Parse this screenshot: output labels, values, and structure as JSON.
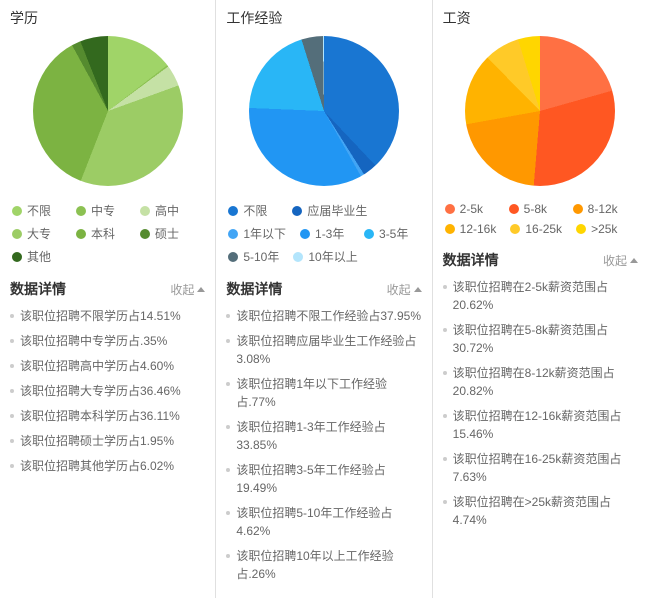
{
  "panels": [
    {
      "title": "学历",
      "type": "pie",
      "segments": [
        {
          "label": "不限",
          "color": "#a0d468",
          "percent": 14.51,
          "text": "该职位招聘不限学历占14.51%"
        },
        {
          "label": "中专",
          "color": "#8cc152",
          "percent": 0.35,
          "text": "该职位招聘中专学历占.35%"
        },
        {
          "label": "高中",
          "color": "#c5e1a5",
          "percent": 4.6,
          "text": "该职位招聘高中学历占4.60%"
        },
        {
          "label": "大专",
          "color": "#9ccc65",
          "percent": 36.46,
          "text": "该职位招聘大专学历占36.46%"
        },
        {
          "label": "本科",
          "color": "#7cb342",
          "percent": 36.11,
          "text": "该职位招聘本科学历占36.11%"
        },
        {
          "label": "硕士",
          "color": "#558b2f",
          "percent": 1.95,
          "text": "该职位招聘硕士学历占1.95%"
        },
        {
          "label": "其他",
          "color": "#33691e",
          "percent": 6.02,
          "text": "该职位招聘其他学历占6.02%"
        }
      ]
    },
    {
      "title": "工作经验",
      "type": "pie",
      "segments": [
        {
          "label": "不限",
          "color": "#1976d2",
          "percent": 37.95,
          "text": "该职位招聘不限工作经验占37.95%"
        },
        {
          "label": "应届毕业生",
          "color": "#1565c0",
          "percent": 3.08,
          "text": "该职位招聘应届毕业生工作经验占3.08%"
        },
        {
          "label": "1年以下",
          "color": "#42a5f5",
          "percent": 0.77,
          "text": "该职位招聘1年以下工作经验占.77%"
        },
        {
          "label": "1-3年",
          "color": "#2196f3",
          "percent": 33.85,
          "text": "该职位招聘1-3年工作经验占33.85%"
        },
        {
          "label": "3-5年",
          "color": "#29b6f6",
          "percent": 19.49,
          "text": "该职位招聘3-5年工作经验占19.49%"
        },
        {
          "label": "5-10年",
          "color": "#546e7a",
          "percent": 4.62,
          "text": "该职位招聘5-10年工作经验占4.62%"
        },
        {
          "label": "10年以上",
          "color": "#b3e5fc",
          "percent": 0.26,
          "text": "该职位招聘10年以上工作经验占.26%"
        }
      ]
    },
    {
      "title": "工资",
      "type": "pie",
      "segments": [
        {
          "label": "2-5k",
          "color": "#ff7043",
          "percent": 20.62,
          "text": "该职位招聘在2-5k薪资范围占20.62%"
        },
        {
          "label": "5-8k",
          "color": "#ff5722",
          "percent": 30.72,
          "text": "该职位招聘在5-8k薪资范围占30.72%"
        },
        {
          "label": "8-12k",
          "color": "#ff9800",
          "percent": 20.82,
          "text": "该职位招聘在8-12k薪资范围占20.82%"
        },
        {
          "label": "12-16k",
          "color": "#ffb300",
          "percent": 15.46,
          "text": "该职位招聘在12-16k薪资范围占15.46%"
        },
        {
          "label": "16-25k",
          "color": "#ffca28",
          "percent": 7.63,
          "text": "该职位招聘在16-25k薪资范围占7.63%"
        },
        {
          "label": ">25k",
          "color": "#ffd600",
          "percent": 4.74,
          "text": "该职位招聘在>25k薪资范围占4.74%"
        }
      ]
    }
  ],
  "ui": {
    "details_label": "数据详情",
    "collapse_label": "收起"
  }
}
